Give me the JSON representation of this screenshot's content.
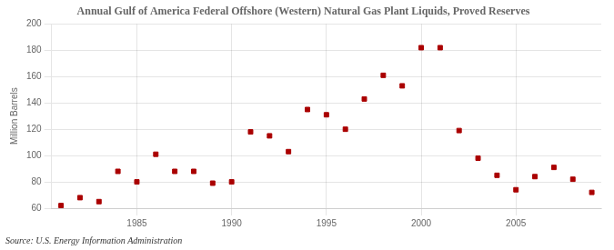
{
  "chart_data": {
    "type": "scatter",
    "title": "Annual Gulf of America Federal Offshore (Western) Natural Gas Plant Liquids, Proved Reserves",
    "ylabel": "Million Barrels",
    "source": "Source: U.S. Energy Information Administration",
    "x": [
      1981,
      1982,
      1983,
      1984,
      1985,
      1986,
      1987,
      1988,
      1989,
      1990,
      1991,
      1992,
      1993,
      1994,
      1995,
      1996,
      1997,
      1998,
      1999,
      2000,
      2001,
      2002,
      2003,
      2004,
      2005,
      2006,
      2007,
      2008,
      2009
    ],
    "values": [
      62,
      68,
      65,
      88,
      80,
      101,
      88,
      88,
      79,
      80,
      118,
      115,
      103,
      135,
      131,
      120,
      143,
      161,
      153,
      182,
      182,
      119,
      98,
      85,
      74,
      84,
      91,
      82,
      72
    ],
    "color": "#aa0000",
    "marker": "square",
    "xlim": [
      1980.5,
      2009.5
    ],
    "ylim": [
      60,
      200
    ],
    "xticks": [
      1985,
      1990,
      1995,
      2000,
      2005
    ],
    "yticks": [
      60,
      80,
      100,
      120,
      140,
      160,
      180,
      200
    ],
    "grid": true
  }
}
